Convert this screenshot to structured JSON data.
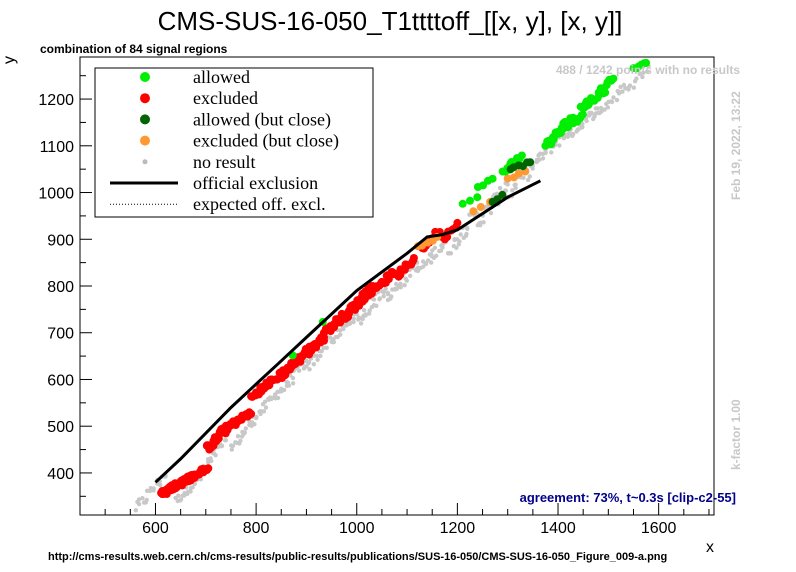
{
  "chart_data": {
    "type": "scatter",
    "title": "CMS-SUS-16-050_T1ttttoff_[[x, y], [x, y]]",
    "subtitle": "combination of 84 signal regions",
    "xlabel": "x",
    "ylabel": "y",
    "xlim": [
      450,
      1710
    ],
    "ylim": [
      310,
      1290
    ],
    "xticks": [
      600,
      800,
      1000,
      1200,
      1400,
      1600
    ],
    "yticks": [
      400,
      500,
      600,
      700,
      800,
      900,
      1000,
      1100,
      1200
    ],
    "legend_position": "top-left",
    "legend": [
      {
        "label": "allowed",
        "color": "#00ee00",
        "kind": "marker"
      },
      {
        "label": "excluded",
        "color": "#ff0000",
        "kind": "marker"
      },
      {
        "label": "allowed (but close)",
        "color": "#006400",
        "kind": "marker"
      },
      {
        "label": "excluded (but close)",
        "color": "#ff9933",
        "kind": "marker"
      },
      {
        "label": "no result",
        "color": "#bbbbbb",
        "kind": "small-marker"
      },
      {
        "label": "official exclusion",
        "color": "#000000",
        "kind": "line"
      },
      {
        "label": "expected off. excl.",
        "color": "#000000",
        "kind": "dotted-line"
      }
    ],
    "official_exclusion": {
      "x": [
        600,
        650,
        700,
        750,
        800,
        850,
        900,
        950,
        1000,
        1050,
        1100,
        1140,
        1170,
        1200,
        1250,
        1300,
        1365
      ],
      "y": [
        380,
        430,
        485,
        540,
        590,
        640,
        690,
        740,
        790,
        830,
        870,
        905,
        910,
        920,
        955,
        990,
        1025
      ]
    },
    "clusters": [
      {
        "x0": 610,
        "y0": 355,
        "x1": 680,
        "y1": 395,
        "n": 40,
        "status": "excluded"
      },
      {
        "x0": 650,
        "y0": 380,
        "x1": 705,
        "y1": 410,
        "n": 25,
        "status": "excluded"
      },
      {
        "x0": 700,
        "y0": 450,
        "x1": 745,
        "y1": 500,
        "n": 25,
        "status": "excluded"
      },
      {
        "x0": 740,
        "y0": 495,
        "x1": 790,
        "y1": 530,
        "n": 25,
        "status": "excluded"
      },
      {
        "x0": 790,
        "y0": 560,
        "x1": 835,
        "y1": 600,
        "n": 25,
        "status": "excluded"
      },
      {
        "x0": 840,
        "y0": 600,
        "x1": 890,
        "y1": 650,
        "n": 25,
        "status": "excluded"
      },
      {
        "x0": 880,
        "y0": 640,
        "x1": 935,
        "y1": 690,
        "n": 25,
        "status": "excluded"
      },
      {
        "x0": 935,
        "y0": 700,
        "x1": 985,
        "y1": 745,
        "n": 25,
        "status": "excluded"
      },
      {
        "x0": 980,
        "y0": 740,
        "x1": 1035,
        "y1": 800,
        "n": 30,
        "status": "excluded"
      },
      {
        "x0": 1030,
        "y0": 790,
        "x1": 1075,
        "y1": 830,
        "n": 20,
        "status": "excluded"
      },
      {
        "x0": 1080,
        "y0": 820,
        "x1": 1115,
        "y1": 860,
        "n": 15,
        "status": "excluded"
      },
      {
        "x0": 1130,
        "y0": 880,
        "x1": 1165,
        "y1": 920,
        "n": 10,
        "status": "excluded"
      },
      {
        "x0": 1170,
        "y0": 900,
        "x1": 1200,
        "y1": 935,
        "n": 8,
        "status": "excluded"
      },
      {
        "x0": 1120,
        "y0": 885,
        "x1": 1160,
        "y1": 905,
        "n": 5,
        "status": "excluded-close"
      },
      {
        "x0": 1230,
        "y0": 960,
        "x1": 1280,
        "y1": 985,
        "n": 4,
        "status": "excluded-close"
      },
      {
        "x0": 1300,
        "y0": 1030,
        "x1": 1335,
        "y1": 1045,
        "n": 4,
        "status": "excluded-close"
      },
      {
        "x0": 1270,
        "y0": 980,
        "x1": 1290,
        "y1": 995,
        "n": 3,
        "status": "allowed-close"
      },
      {
        "x0": 1305,
        "y0": 1050,
        "x1": 1345,
        "y1": 1065,
        "n": 6,
        "status": "allowed-close"
      },
      {
        "x0": 1210,
        "y0": 975,
        "x1": 1240,
        "y1": 990,
        "n": 3,
        "status": "allowed"
      },
      {
        "x0": 1240,
        "y0": 1010,
        "x1": 1270,
        "y1": 1030,
        "n": 4,
        "status": "allowed"
      },
      {
        "x0": 1290,
        "y0": 1045,
        "x1": 1330,
        "y1": 1080,
        "n": 12,
        "status": "allowed"
      },
      {
        "x0": 1375,
        "y0": 1100,
        "x1": 1430,
        "y1": 1160,
        "n": 25,
        "status": "allowed"
      },
      {
        "x0": 1420,
        "y0": 1140,
        "x1": 1450,
        "y1": 1170,
        "n": 10,
        "status": "allowed"
      },
      {
        "x0": 1445,
        "y0": 1180,
        "x1": 1495,
        "y1": 1220,
        "n": 20,
        "status": "allowed"
      },
      {
        "x0": 1485,
        "y0": 1220,
        "x1": 1510,
        "y1": 1245,
        "n": 8,
        "status": "allowed"
      },
      {
        "x0": 1550,
        "y0": 1265,
        "x1": 1575,
        "y1": 1280,
        "n": 6,
        "status": "allowed"
      },
      {
        "x0": 930,
        "y0": 720,
        "x1": 935,
        "y1": 725,
        "n": 1,
        "status": "allowed"
      },
      {
        "x0": 870,
        "y0": 650,
        "x1": 875,
        "y1": 655,
        "n": 1,
        "status": "allowed"
      },
      {
        "x0": 560,
        "y0": 320,
        "x1": 620,
        "y1": 400,
        "n": 20,
        "status": "no-result"
      },
      {
        "x0": 640,
        "y0": 340,
        "x1": 690,
        "y1": 390,
        "n": 20,
        "status": "no-result"
      },
      {
        "x0": 690,
        "y0": 400,
        "x1": 740,
        "y1": 470,
        "n": 20,
        "status": "no-result"
      },
      {
        "x0": 750,
        "y0": 450,
        "x1": 800,
        "y1": 520,
        "n": 20,
        "status": "no-result"
      },
      {
        "x0": 800,
        "y0": 520,
        "x1": 850,
        "y1": 580,
        "n": 20,
        "status": "no-result"
      },
      {
        "x0": 850,
        "y0": 575,
        "x1": 900,
        "y1": 640,
        "n": 20,
        "status": "no-result"
      },
      {
        "x0": 900,
        "y0": 620,
        "x1": 950,
        "y1": 690,
        "n": 20,
        "status": "no-result"
      },
      {
        "x0": 950,
        "y0": 680,
        "x1": 1000,
        "y1": 740,
        "n": 20,
        "status": "no-result"
      },
      {
        "x0": 1000,
        "y0": 720,
        "x1": 1060,
        "y1": 800,
        "n": 25,
        "status": "no-result"
      },
      {
        "x0": 1060,
        "y0": 770,
        "x1": 1120,
        "y1": 850,
        "n": 25,
        "status": "no-result"
      },
      {
        "x0": 1120,
        "y0": 830,
        "x1": 1180,
        "y1": 900,
        "n": 25,
        "status": "no-result"
      },
      {
        "x0": 1180,
        "y0": 870,
        "x1": 1240,
        "y1": 960,
        "n": 25,
        "status": "no-result"
      },
      {
        "x0": 1240,
        "y0": 930,
        "x1": 1300,
        "y1": 1020,
        "n": 25,
        "status": "no-result"
      },
      {
        "x0": 1300,
        "y0": 990,
        "x1": 1360,
        "y1": 1070,
        "n": 20,
        "status": "no-result"
      },
      {
        "x0": 1360,
        "y0": 1070,
        "x1": 1420,
        "y1": 1130,
        "n": 25,
        "status": "no-result"
      },
      {
        "x0": 1420,
        "y0": 1120,
        "x1": 1480,
        "y1": 1180,
        "n": 25,
        "status": "no-result"
      },
      {
        "x0": 1480,
        "y0": 1170,
        "x1": 1540,
        "y1": 1230,
        "n": 20,
        "status": "no-result"
      },
      {
        "x0": 1540,
        "y0": 1220,
        "x1": 1580,
        "y1": 1270,
        "n": 10,
        "status": "no-result"
      }
    ],
    "colors": {
      "allowed": "#00ee00",
      "excluded": "#ff0000",
      "allowed-close": "#006400",
      "excluded-close": "#ff9933",
      "no-result": "#c8c8c8"
    }
  },
  "annotations": {
    "points_note": "488 / 1242 points with no results",
    "date": "Feb 19, 2022, 13:22",
    "kfactor": "k-factor 1.00",
    "agreement": "agreement: 73%, t~0.3s [clip-c2-55]",
    "url": "http://cms-results.web.cern.ch/cms-results/public-results/publications/SUS-16-050/CMS-SUS-16-050_Figure_009-a.png"
  }
}
